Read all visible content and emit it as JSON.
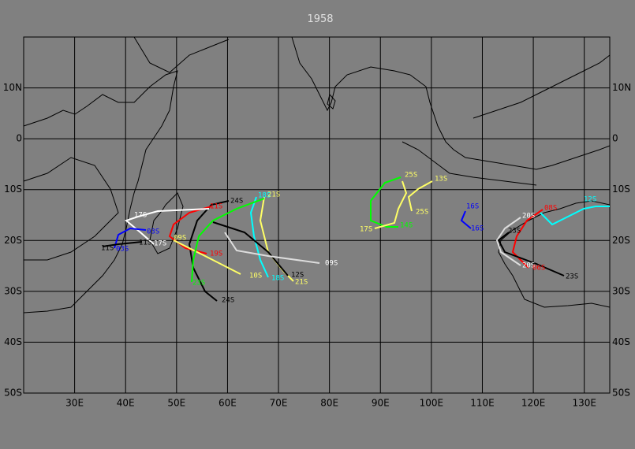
{
  "chart_data": {
    "type": "map",
    "title": "1958",
    "xlim": [
      20,
      135
    ],
    "ylim": [
      -50,
      20
    ],
    "xticks": [
      {
        "value": 30,
        "label": "30E"
      },
      {
        "value": 40,
        "label": "40E"
      },
      {
        "value": 50,
        "label": "50E"
      },
      {
        "value": 60,
        "label": "60E"
      },
      {
        "value": 70,
        "label": "70E"
      },
      {
        "value": 80,
        "label": "80E"
      },
      {
        "value": 90,
        "label": "90E"
      },
      {
        "value": 100,
        "label": "100E"
      },
      {
        "value": 110,
        "label": "110E"
      },
      {
        "value": 120,
        "label": "120E"
      },
      {
        "value": 130,
        "label": "130E"
      }
    ],
    "yticks": [
      {
        "value": 10,
        "label": "10N"
      },
      0,
      {
        "value": -10,
        "label": "10S"
      },
      {
        "value": -20,
        "label": "20S"
      },
      {
        "value": -30,
        "label": "30S"
      },
      {
        "value": -40,
        "label": "40S"
      },
      {
        "value": -50,
        "label": "50S"
      }
    ],
    "grid": true,
    "storm_labels": [
      "24S",
      "11S",
      "18S",
      "21S",
      "17S",
      "03S",
      "11S",
      "17S",
      "11S",
      "03S",
      "09S",
      "19S",
      "10S",
      "18S",
      "12S",
      "21S",
      "09S",
      "23S",
      "24S",
      "25S",
      "13S",
      "25S",
      "14S",
      "17S",
      "16S",
      "16S",
      "20S",
      "08S",
      "23S",
      "20S",
      "06S",
      "23S",
      "12S"
    ]
  }
}
